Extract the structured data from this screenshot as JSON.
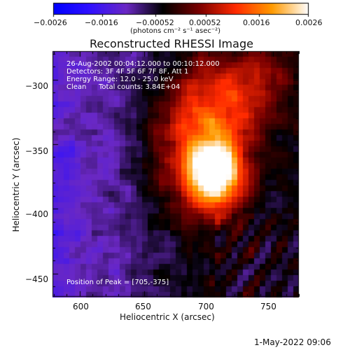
{
  "chart_data": {
    "type": "heatmap",
    "title": "Reconstructed RHESSI Image",
    "xlabel": "Heliocentric X (arcsec)",
    "ylabel": "Heliocentric Y (arcsec)",
    "xlim": [
      579,
      770
    ],
    "ylim": [
      -468,
      -278
    ],
    "x_ticks": [
      600,
      650,
      700,
      750
    ],
    "y_ticks": [
      -300,
      -350,
      -400,
      -450
    ],
    "x_tick_labels": [
      "600",
      "650",
      "700",
      "750"
    ],
    "y_tick_labels": [
      "−300",
      "−350",
      "−400",
      "−450"
    ],
    "colorbar": {
      "min": -0.0026,
      "max": 0.0026,
      "ticks": [
        -0.0026,
        -0.0016,
        -0.00052,
        0.00052,
        0.0016,
        0.0026
      ],
      "tick_labels": [
        "−0.0026",
        "−0.0016",
        "−0.00052",
        "0.00052",
        "0.0016",
        "0.0026"
      ],
      "unit_label": "(photons cm⁻² s⁻¹ asec⁻²)",
      "colormap": "RHESSI std gamma II",
      "colors": [
        "#0000ff",
        "#3010ff",
        "#6a28c4",
        "#000000",
        "#7a0000",
        "#ff2a00",
        "#ff9a00",
        "#ffffff"
      ]
    },
    "peak": {
      "x": 705,
      "y": -375
    }
  },
  "annotations": {
    "time_range": "26-Aug-2002 00:04:12.000 to 00:10:12.000",
    "detectors": "Detectors: 3F 4F 5F 6F 7F 8F, Att 1",
    "energy": "Energy Range: 12.0 - 25.0 keV",
    "clean": "Clean",
    "total_counts": "Total counts: 3.84E+04",
    "peak_position": "Position of Peak = [705,-375]"
  },
  "timestamp": "1-May-2022 09:06"
}
